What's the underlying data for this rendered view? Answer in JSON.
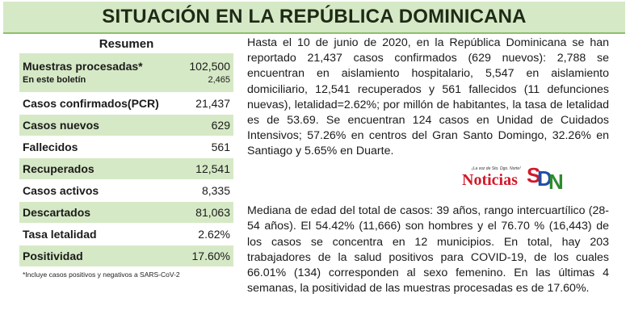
{
  "title": "SITUACIÓN EN LA REPÚBLICA DOMINICANA",
  "summary": {
    "heading": "Resumen",
    "muestras": {
      "label": "Muestras procesadas*",
      "value": "102,500",
      "sub_label": "En este boletín",
      "sub_value": "2,465"
    },
    "rows": [
      {
        "label": "Casos confirmados(PCR)",
        "value": "21,437"
      },
      {
        "label": "Casos nuevos",
        "value": "629"
      },
      {
        "label": "Fallecidos",
        "value": "561"
      },
      {
        "label": "Recuperados",
        "value": "12,541"
      },
      {
        "label": "Casos activos",
        "value": "8,335"
      },
      {
        "label": "Descartados",
        "value": "81,063"
      },
      {
        "label": "Tasa letalidad",
        "value": "2.62%"
      },
      {
        "label": "Positividad",
        "value": "17.60%"
      }
    ],
    "footnote": "*Incluye casos positivos y negativos a SARS-CoV-2"
  },
  "paragraphs": [
    "Hasta el 10 de junio de 2020, en la República Dominicana se han reportado 21,437 casos confirmados (629 nuevos): 2,788 se encuentran en aislamiento hospitalario, 5,547 en aislamiento domiciliario, 12,541 recuperados y 561 fallecidos (11 defunciones nuevas), letalidad=2.62%; por millón de habitantes, la tasa de letalidad es de 53.69. Se encuentran 124 casos en Unidad de Cuidados Intensivos; 57.26% en centros del Gran Santo Domingo, 32.26% en Santiago y 5.65% en Duarte.",
    "Mediana de edad del total de casos: 39 años, rango intercuartílico (28-54 años). El 54.42% (11,666) son hombres y el 76.70 % (16,443) de los casos se concentra en 12 municipios. En total, hay 203 trabajadores de la salud positivos para COVID-19, de los cuales 66.01% (134) corresponden al sexo femenino. En las últimas 4 semanas, la positividad de las muestras procesadas es de 17.60%."
  ],
  "watermark": {
    "tagline": "¡La voz de Sto. Dgo. Norte!",
    "word": "Noticias",
    "logo_s": "S",
    "logo_d": "D",
    "logo_n": "N"
  },
  "colors": {
    "shade": "#d6e9c6",
    "accent_red": "#d11a2a",
    "accent_blue": "#1f4fa5",
    "accent_green": "#2e8b2e"
  }
}
